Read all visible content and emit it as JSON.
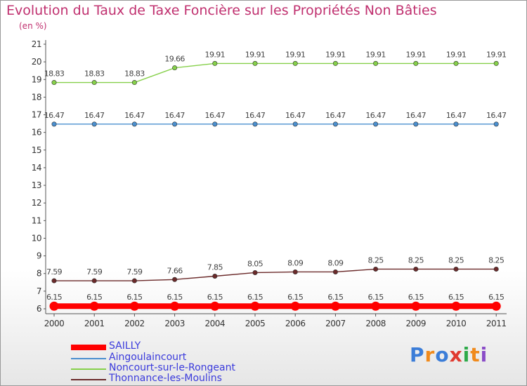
{
  "chart_data": {
    "type": "line",
    "title": "Evolution du Taux de Taxe Foncière sur les Propriétés Non Bâties",
    "subtitle": "(en %)",
    "xlabel": "",
    "ylabel": "",
    "x": [
      "2000",
      "2001",
      "2002",
      "2003",
      "2004",
      "2005",
      "2006",
      "2007",
      "2008",
      "2009",
      "2010",
      "2011"
    ],
    "ylim": [
      6,
      21
    ],
    "yticks": [
      "6",
      "7",
      "8",
      "9",
      "10",
      "11",
      "12",
      "13",
      "14",
      "15",
      "16",
      "17",
      "18",
      "19",
      "20",
      "21"
    ],
    "grid": false,
    "legend_position": "bottom-left",
    "series": [
      {
        "name": "SAILLY",
        "color": "#ff0000",
        "values": [
          6.15,
          6.15,
          6.15,
          6.15,
          6.15,
          6.15,
          6.15,
          6.15,
          6.15,
          6.15,
          6.15,
          6.15
        ],
        "labels": [
          "6.15",
          "6.15",
          "6.15",
          "6.15",
          "6.15",
          "6.15",
          "6.15",
          "6.15",
          "6.15",
          "6.15",
          "6.15",
          "6.15"
        ]
      },
      {
        "name": "Aingoulaincourt",
        "color": "#4a8fcf",
        "values": [
          16.47,
          16.47,
          16.47,
          16.47,
          16.47,
          16.47,
          16.47,
          16.47,
          16.47,
          16.47,
          16.47,
          16.47
        ],
        "labels": [
          "16.47",
          "16.47",
          "16.47",
          "16.47",
          "16.47",
          "16.47",
          "16.47",
          "16.47",
          "16.47",
          "16.47",
          "16.47",
          "16.47"
        ]
      },
      {
        "name": "Noncourt-sur-le-Rongeant",
        "color": "#86d04a",
        "values": [
          18.83,
          18.83,
          18.83,
          19.66,
          19.91,
          19.91,
          19.91,
          19.91,
          19.91,
          19.91,
          19.91,
          19.91
        ],
        "labels": [
          "18.83",
          "18.83",
          "18.83",
          "19.66",
          "19.91",
          "19.91",
          "19.91",
          "19.91",
          "19.91",
          "19.91",
          "19.91",
          "19.91"
        ]
      },
      {
        "name": "Thonnance-les-Moulins",
        "color": "#6b2a2a",
        "values": [
          7.59,
          7.59,
          7.59,
          7.66,
          7.85,
          8.05,
          8.09,
          8.09,
          8.25,
          8.25,
          8.25,
          8.25
        ],
        "labels": [
          "7.59",
          "7.59",
          "7.59",
          "7.66",
          "7.85",
          "8.05",
          "8.09",
          "8.09",
          "8.25",
          "8.25",
          "8.25",
          "8.25"
        ]
      }
    ]
  },
  "brand": {
    "letters": [
      "P",
      "r",
      "o",
      "x",
      "i",
      "t",
      "i"
    ],
    "colors": [
      "#3b7dd8",
      "#f08a1c",
      "#3b7dd8",
      "#e03a2f",
      "#2eaa4a",
      "#f08a1c",
      "#8a4cc8"
    ]
  }
}
